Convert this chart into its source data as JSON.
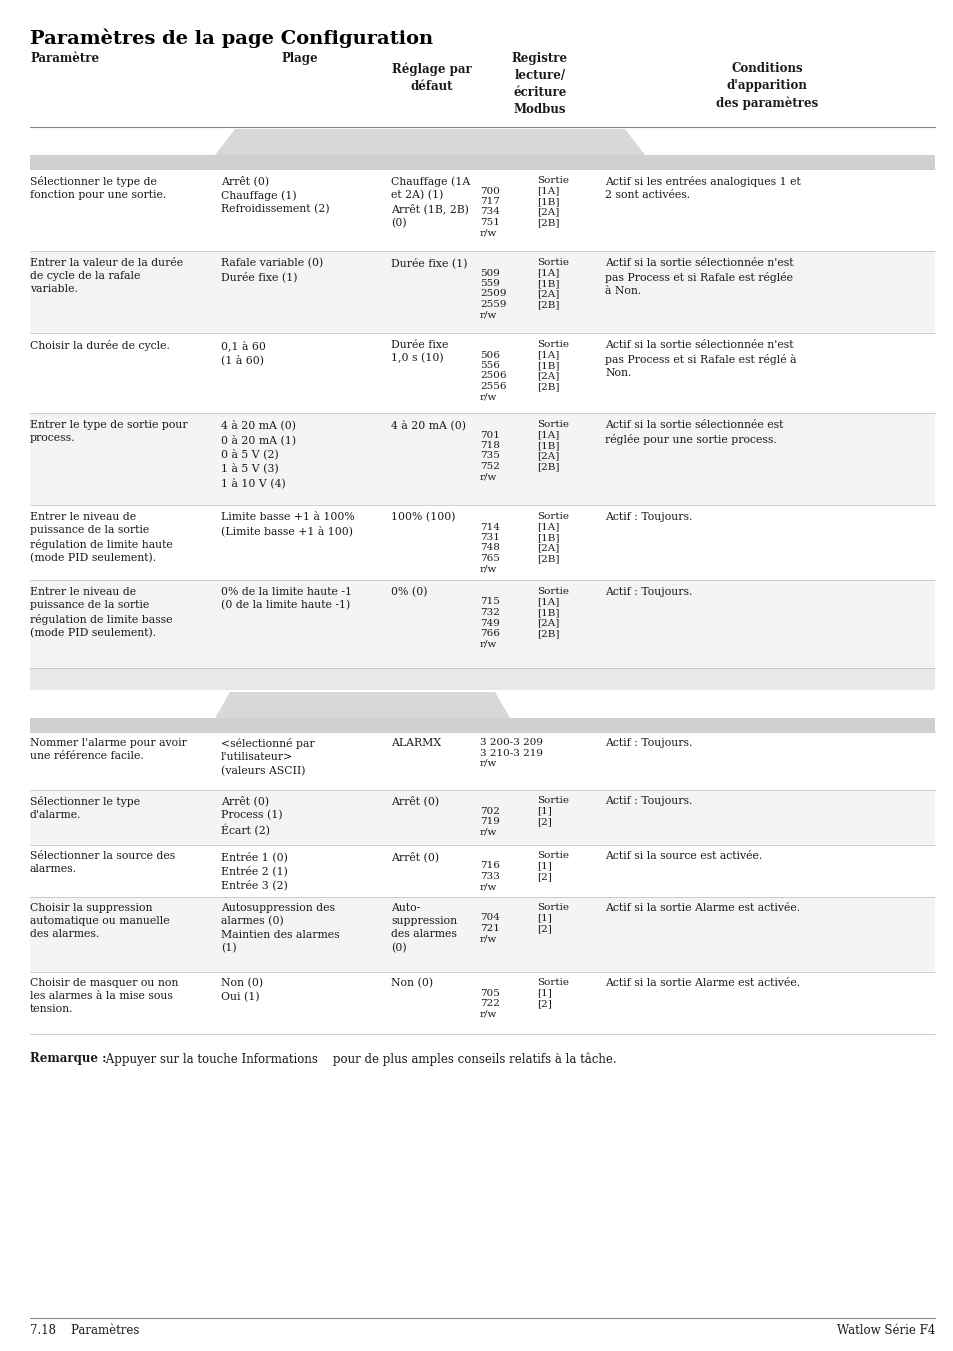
{
  "title": "Paramètres de la page Configuration",
  "header": {
    "col1": "Paramètre",
    "col2": "Plage",
    "col3": "Réglage par\ndéfaut",
    "col4": "Registre\nlecture/\nécriture\nModbus",
    "col5": "Conditions\nd'apparition\ndes paramètres"
  },
  "rows_section1": [
    {
      "param": "Sélectionner le type de\nfonction pour une sortie.",
      "plage": "Arrêt (0)\nChauffage (1)\nRefroidissement (2)",
      "defaut": "Chauffage (1A\net 2A) (1)\nArrêt (1B, 2B)\n(0)",
      "modbus_nums": [
        "700",
        "717",
        "734",
        "751"
      ],
      "modbus_labels": [
        "Sortie",
        "[1A]",
        "[1B]",
        "[2A]",
        "[2B]",
        "r/w"
      ],
      "conditions": "Actif si les entrées analogiques 1 et\n2 sont activées."
    },
    {
      "param": "Entrer la valeur de la durée\nde cycle de la rafale\nvariable.",
      "plage": "Rafale variable (0)\nDurée fixe (1)",
      "defaut": "Durée fixe (1)",
      "modbus_nums": [
        "509",
        "559",
        "2509",
        "2559"
      ],
      "modbus_labels": [
        "Sortie",
        "[1A]",
        "[1B]",
        "[2A]",
        "[2B]",
        "r/w"
      ],
      "conditions": "Actif si la sortie sélectionnée n'est\npas Process et si Rafale est réglée\nà Non."
    },
    {
      "param": "Choisir la durée de cycle.",
      "plage": "0,1 à 60\n(1 à 60)",
      "defaut": "Durée fixe\n1,0 s (10)",
      "modbus_nums": [
        "506",
        "556",
        "2506",
        "2556"
      ],
      "modbus_labels": [
        "Sortie",
        "[1A]",
        "[1B]",
        "[2A]",
        "[2B]",
        "r/w"
      ],
      "conditions": "Actif si la sortie sélectionnée n'est\npas Process et si Rafale est réglé à\nNon."
    },
    {
      "param": "Entrer le type de sortie pour\nprocess.",
      "plage": "4 à 20 mA (0)\n0 à 20 mA (1)\n0 à 5 V (2)\n1 à 5 V (3)\n1 à 10 V (4)",
      "defaut": "4 à 20 mA (0)",
      "modbus_nums": [
        "701",
        "718",
        "735",
        "752"
      ],
      "modbus_labels": [
        "Sortie",
        "[1A]",
        "[1B]",
        "[2A]",
        "[2B]",
        "r/w"
      ],
      "conditions": "Actif si la sortie sélectionnée est\nréglée pour une sortie process."
    },
    {
      "param": "Entrer le niveau de\npuissance de la sortie\nrégulation de limite haute\n(mode PID seulement).",
      "plage": "Limite basse +1 à 100%\n(Limite basse +1 à 100)",
      "defaut": "100% (100)",
      "modbus_nums": [
        "714",
        "731",
        "748",
        "765"
      ],
      "modbus_labels": [
        "Sortie",
        "[1A]",
        "[1B]",
        "[2A]",
        "[2B]",
        "r/w"
      ],
      "conditions": "Actif : Toujours."
    },
    {
      "param": "Entrer le niveau de\npuissance de la sortie\nrégulation de limite basse\n(mode PID seulement).",
      "plage": "0% de la limite haute -1\n(0 de la limite haute -1)",
      "defaut": "0% (0)",
      "modbus_nums": [
        "715",
        "732",
        "749",
        "766"
      ],
      "modbus_labels": [
        "Sortie",
        "[1A]",
        "[1B]",
        "[2A]",
        "[2B]",
        "r/w"
      ],
      "conditions": "Actif : Toujours."
    }
  ],
  "rows_section2": [
    {
      "param": "Nommer l'alarme pour avoir\nune référence facile.",
      "plage": "<sélectionné par\nl'utilisateur>\n(valeurs ASCII)",
      "defaut": "ALARMX",
      "modbus_nums": [
        "3 200-3 209",
        "3 210-3 219"
      ],
      "modbus_labels": [
        "r/w"
      ],
      "conditions": "Actif : Toujours."
    },
    {
      "param": "Sélectionner le type\nd'alarme.",
      "plage": "Arrêt (0)\nProcess (1)\nÉcart (2)",
      "defaut": "Arrêt (0)",
      "modbus_nums": [
        "702",
        "719"
      ],
      "modbus_labels": [
        "Sortie",
        "[1]",
        "[2]",
        "r/w"
      ],
      "conditions": "Actif : Toujours."
    },
    {
      "param": "Sélectionner la source des\nalarmes.",
      "plage": "Entrée 1 (0)\nEntrée 2 (1)\nEntrée 3 (2)",
      "defaut": "Arrêt (0)",
      "modbus_nums": [
        "716",
        "733"
      ],
      "modbus_labels": [
        "Sortie",
        "[1]",
        "[2]",
        "r/w"
      ],
      "conditions": "Actif si la source est activée."
    },
    {
      "param": "Choisir la suppression\nautomatique ou manuelle\ndes alarmes.",
      "plage": "Autosuppression des\nalarmes (0)\nMaintien des alarmes\n(1)",
      "defaut": "Auto-\nsuppression\ndes alarmes\n(0)",
      "modbus_nums": [
        "704",
        "721"
      ],
      "modbus_labels": [
        "Sortie",
        "[1]",
        "[2]",
        "r/w"
      ],
      "conditions": "Actif si la sortie Alarme est activée."
    },
    {
      "param": "Choisir de masquer ou non\nles alarmes à la mise sous\ntension.",
      "plage": "Non (0)\nOui (1)",
      "defaut": "Non (0)",
      "modbus_nums": [
        "705",
        "722"
      ],
      "modbus_labels": [
        "Sortie",
        "[1]",
        "[2]",
        "r/w"
      ],
      "conditions": "Actif si la sortie Alarme est activée."
    }
  ],
  "note_bold": "Remarque :",
  "note_rest": " Appuyer sur la touche Informations    pour de plus amples conseils relatifs à la tâche.",
  "footer_left": "7.18    Paramètres",
  "footer_right": "Watlow Série F4"
}
